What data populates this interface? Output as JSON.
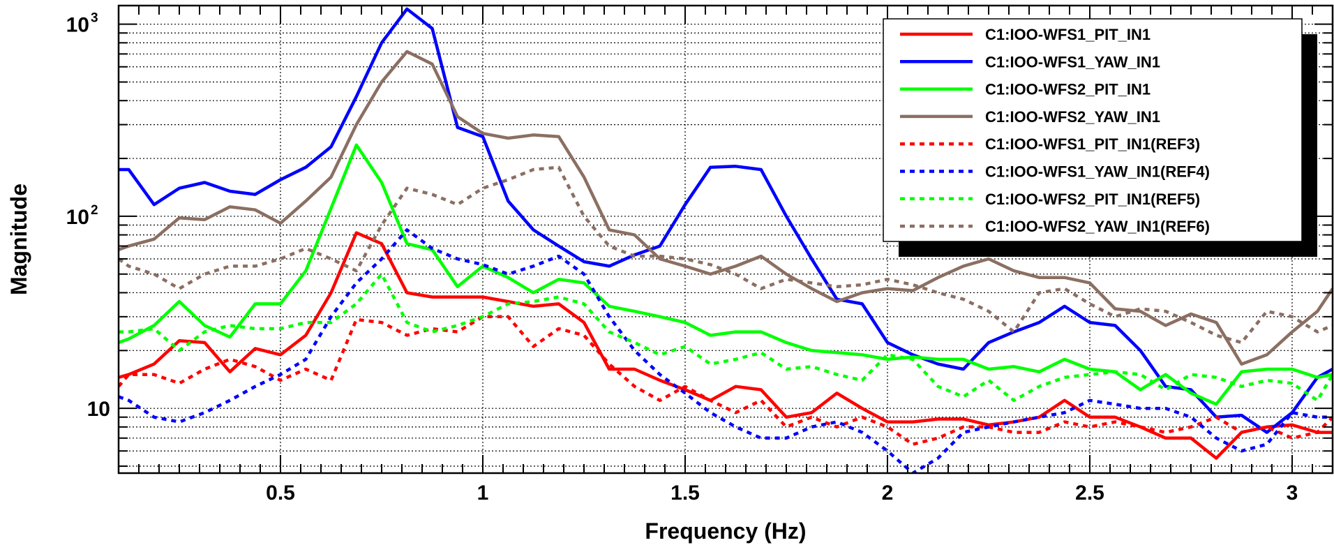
{
  "chart_data": {
    "type": "line",
    "xlabel": "Frequency (Hz)",
    "ylabel": "Magnitude",
    "xlim": [
      0.1,
      3.1
    ],
    "ylim": [
      4.6,
      1250
    ],
    "yscale": "log",
    "grid": true,
    "legend_position": "top-right",
    "x_ticks": [
      {
        "value": 0.5,
        "label": "0.5"
      },
      {
        "value": 1,
        "label": "1"
      },
      {
        "value": 1.5,
        "label": "1.5"
      },
      {
        "value": 2,
        "label": "2"
      },
      {
        "value": 2.5,
        "label": "2.5"
      },
      {
        "value": 3,
        "label": "3"
      }
    ],
    "y_ticks": [
      {
        "value": 10,
        "base": "10",
        "exp": ""
      },
      {
        "value": 100,
        "base": "10",
        "exp": "2"
      },
      {
        "value": 1000,
        "base": "10",
        "exp": "3"
      }
    ],
    "x": [
      0.1,
      0.125,
      0.1875,
      0.25,
      0.3125,
      0.375,
      0.4375,
      0.5,
      0.5625,
      0.625,
      0.6875,
      0.75,
      0.8125,
      0.875,
      0.9375,
      1.0,
      1.0625,
      1.125,
      1.1875,
      1.25,
      1.3125,
      1.375,
      1.4375,
      1.5,
      1.5625,
      1.625,
      1.6875,
      1.75,
      1.8125,
      1.875,
      1.9375,
      2.0,
      2.0625,
      2.125,
      2.1875,
      2.25,
      2.3125,
      2.375,
      2.4375,
      2.5,
      2.5625,
      2.625,
      2.6875,
      2.75,
      2.8125,
      2.875,
      2.9375,
      3.0,
      3.0625,
      3.1
    ],
    "series": [
      {
        "name": "C1:IOO-WFS1_PIT_IN1",
        "color": "#ff0000",
        "dashed": false,
        "values": [
          14.5,
          15,
          17,
          22.5,
          22,
          15.5,
          20.5,
          19,
          24,
          40,
          82,
          72,
          40,
          38,
          38,
          38,
          36,
          34,
          35,
          28,
          16,
          16,
          14,
          12.5,
          11,
          13,
          12.5,
          9,
          9.5,
          12,
          10,
          8.5,
          8.5,
          8.8,
          8.8,
          8.2,
          8.5,
          9,
          11,
          9,
          9,
          8,
          7,
          7,
          5.5,
          7.5,
          8,
          8.2,
          7.5,
          7.5
        ]
      },
      {
        "name": "C1:IOO-WFS1_YAW_IN1",
        "color": "#0000ff",
        "dashed": false,
        "values": [
          175,
          175,
          115,
          140,
          150,
          135,
          130,
          155,
          180,
          230,
          420,
          800,
          1200,
          950,
          290,
          260,
          120,
          85,
          70,
          58,
          55,
          63,
          70,
          115,
          180,
          182,
          175,
          100,
          60,
          37,
          35,
          22,
          19,
          17,
          16,
          22,
          25,
          28,
          34,
          28,
          27,
          20,
          13,
          12.5,
          9,
          9.2,
          7.5,
          9.5,
          14.5,
          16
        ]
      },
      {
        "name": "C1:IOO-WFS2_PIT_IN1",
        "color": "#00ff00",
        "dashed": false,
        "values": [
          22,
          23,
          27,
          36,
          27,
          23.5,
          35,
          35,
          52,
          110,
          235,
          150,
          72,
          67,
          43,
          55,
          48,
          40,
          47,
          45,
          34,
          32,
          30,
          28,
          24,
          25,
          25,
          22,
          20,
          19.5,
          19,
          18,
          18.5,
          18,
          18,
          16,
          16.5,
          15.5,
          18,
          16,
          15.5,
          12.5,
          15,
          12,
          10.5,
          15.5,
          16,
          16,
          14.5,
          15
        ]
      },
      {
        "name": "C1:IOO-WFS2_YAW_IN1",
        "color": "#8b6f62",
        "dashed": false,
        "values": [
          67,
          70,
          76,
          98,
          96,
          112,
          108,
          92,
          120,
          160,
          300,
          500,
          720,
          620,
          330,
          270,
          255,
          265,
          260,
          160,
          85,
          80,
          60,
          55,
          50,
          55,
          62,
          50,
          42,
          36,
          40,
          42,
          41,
          48,
          55,
          60,
          52,
          48,
          48,
          45,
          33,
          32,
          27,
          31,
          28,
          17,
          19,
          25,
          32,
          42
        ]
      },
      {
        "name": "C1:IOO-WFS1_PIT_IN1(REF3)",
        "color": "#ff0000",
        "dashed": true,
        "values": [
          13,
          15,
          15,
          13.5,
          16,
          18,
          16.5,
          14,
          16,
          14,
          29,
          28,
          24,
          26,
          25,
          30,
          30,
          21,
          26,
          24,
          17,
          13,
          11,
          13,
          11,
          9.5,
          11,
          8,
          9,
          8,
          9,
          8,
          6.5,
          7,
          8,
          8,
          7.5,
          7.5,
          8.5,
          8,
          8.5,
          8,
          7.5,
          8,
          9,
          7.5,
          8,
          7,
          7.5,
          9
        ]
      },
      {
        "name": "C1:IOO-WFS1_YAW_IN1(REF4)",
        "color": "#0000ff",
        "dashed": true,
        "values": [
          11.5,
          11,
          9,
          8.5,
          9.5,
          11,
          13,
          15,
          18,
          30,
          45,
          60,
          85,
          68,
          60,
          56,
          50,
          55,
          62,
          50,
          30,
          20,
          15,
          12,
          9.5,
          8,
          7,
          7,
          8,
          8.5,
          7.5,
          6,
          4.6,
          5.5,
          7.5,
          8,
          8.5,
          9,
          9.5,
          11,
          10.5,
          10,
          10,
          9,
          7,
          6,
          6.5,
          9.5,
          9,
          9
        ]
      },
      {
        "name": "C1:IOO-WFS2_PIT_IN1(REF5)",
        "color": "#00ff00",
        "dashed": true,
        "values": [
          25,
          25,
          26,
          20,
          25,
          27,
          26,
          26,
          28,
          28,
          35,
          50,
          28,
          25,
          27,
          30,
          35,
          36,
          38,
          35,
          25,
          22,
          19,
          21,
          17,
          18,
          19.5,
          16,
          16.5,
          15,
          14,
          19,
          18,
          13,
          11.5,
          14,
          11,
          13,
          14.5,
          15,
          15.5,
          15,
          12.5,
          15,
          14.5,
          13,
          14,
          13.5,
          11,
          15
        ]
      },
      {
        "name": "C1:IOO-WFS2_YAW_IN1(REF6)",
        "color": "#8b6f62",
        "dashed": true,
        "values": [
          60,
          55,
          50,
          42,
          50,
          55,
          55,
          60,
          68,
          60,
          52,
          90,
          140,
          130,
          115,
          140,
          155,
          175,
          180,
          100,
          70,
          62,
          62,
          60,
          56,
          50,
          42,
          47,
          45,
          43,
          44,
          47,
          44,
          40,
          37,
          32,
          25,
          40,
          42,
          35,
          30,
          33,
          32,
          28,
          24,
          22,
          32,
          30,
          25,
          27
        ]
      }
    ]
  }
}
